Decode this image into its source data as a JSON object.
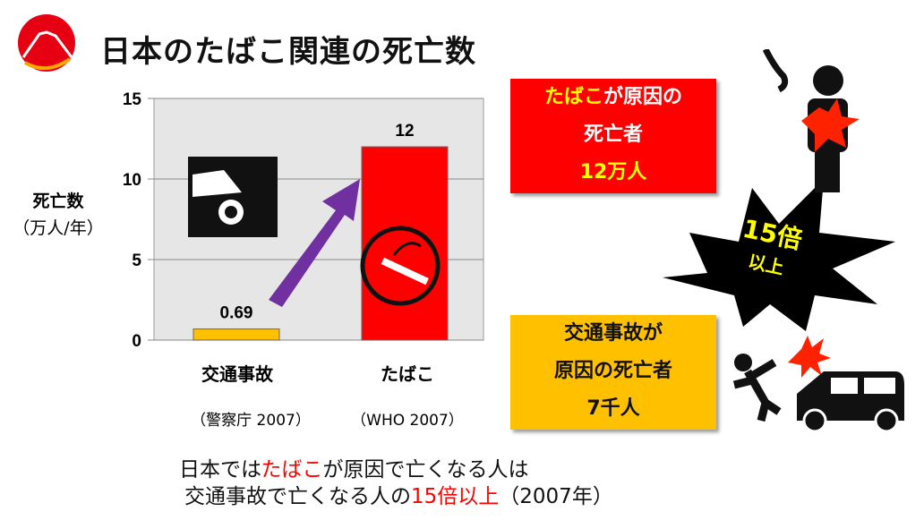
{
  "title": "日本のたばこ関連の死亡数",
  "chart_data": {
    "type": "bar",
    "categories": [
      "交通事故",
      "たばこ"
    ],
    "category_sources": [
      "（警察庁 2007）",
      "（WHO 2007）"
    ],
    "values": [
      0.69,
      12
    ],
    "value_labels": [
      "0.69",
      "12"
    ],
    "bar_colors": [
      "#ffc000",
      "#ff0000"
    ],
    "ylabel": [
      "死亡数",
      "（万人/年）"
    ],
    "ylim": [
      0,
      15
    ],
    "yticks": [
      "0",
      "5",
      "10",
      "15"
    ],
    "grid": true
  },
  "red_box": {
    "line1_highlight": "たばこ",
    "line1_rest": "が原因の",
    "line2": "死亡者",
    "line3": "12万人"
  },
  "burst": {
    "line1": "15倍",
    "line2": "以上"
  },
  "yellow_box": {
    "line1": "交通事故が",
    "line2": "原因の死亡者",
    "line3": "7千人"
  },
  "bottom": {
    "l1_a": "日本では",
    "l1_b": "たばこ",
    "l1_c": "が原因で亡くなる人は",
    "l2_a": "交通事故で亡くなる人の",
    "l2_b": "15倍以上",
    "l2_c": "（2007年）"
  },
  "colors": {
    "tobacco": "#ff0000",
    "traffic": "#ffc000",
    "arrow": "#7030a0"
  }
}
